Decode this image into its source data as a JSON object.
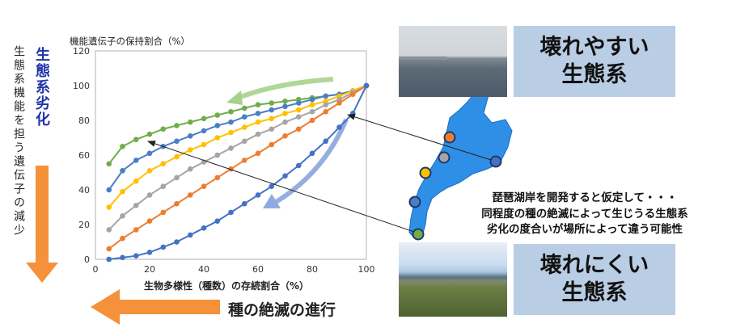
{
  "left_vertical": {
    "function_loss": "生態系機能を担う遺伝子の減少",
    "degradation": "生態系劣化"
  },
  "bottom_arrow_label": "種の絶滅の進行",
  "chart_data": {
    "type": "line",
    "title": "機能遺伝子の保持割合（%）",
    "xlabel": "生物多様性（種数）の存続割合（%）",
    "ylabel": "",
    "xlim": [
      0,
      100
    ],
    "ylim": [
      0,
      120
    ],
    "xticks": [
      "0",
      "20",
      "40",
      "60",
      "80",
      "100"
    ],
    "yticks": [
      "0",
      "20",
      "40",
      "60",
      "80",
      "100",
      "120"
    ],
    "x": [
      5,
      10,
      15,
      20,
      25,
      30,
      35,
      40,
      45,
      50,
      55,
      60,
      65,
      70,
      75,
      80,
      85,
      90,
      95,
      100
    ],
    "series": [
      {
        "color": "#70ad47",
        "values": [
          55,
          65,
          69,
          72,
          75,
          77,
          79,
          81,
          83,
          85,
          87,
          89,
          90,
          91,
          92,
          93,
          94,
          95,
          97,
          100
        ]
      },
      {
        "color": "#4a7ec6",
        "values": [
          40,
          51,
          57,
          61,
          65,
          68,
          71,
          74,
          77,
          79,
          82,
          84,
          86,
          88,
          90,
          92,
          94,
          95,
          97,
          100
        ]
      },
      {
        "color": "#ffc000",
        "values": [
          30,
          39,
          45,
          51,
          55,
          59,
          63,
          66,
          70,
          73,
          76,
          79,
          81,
          84,
          86,
          89,
          91,
          94,
          97,
          100
        ]
      },
      {
        "color": "#a5a5a5",
        "values": [
          17,
          25,
          31,
          37,
          42,
          47,
          52,
          56,
          60,
          64,
          68,
          72,
          75,
          79,
          82,
          85,
          89,
          92,
          96,
          100
        ]
      },
      {
        "color": "#ed7d31",
        "values": [
          6,
          12,
          17,
          22,
          27,
          32,
          37,
          42,
          47,
          52,
          57,
          61,
          66,
          71,
          75,
          80,
          85,
          90,
          95,
          100
        ]
      },
      {
        "color": "#4472c4",
        "values": [
          0,
          1,
          2,
          4,
          7,
          10,
          14,
          18,
          22,
          27,
          32,
          37,
          42,
          48,
          54,
          61,
          68,
          76,
          84,
          100
        ]
      }
    ]
  },
  "labels": {
    "fragile_line1": "壊れやすい",
    "fragile_line2": "生態系",
    "robust_line1": "壊れにくい",
    "robust_line2": "生態系"
  },
  "caption": {
    "line1": "琵琶湖岸を開発すると仮定して・・・",
    "line2": "同程度の種の絶滅によって生じうる生態系",
    "line3": "劣化の度合いが場所によって違う可能性"
  },
  "colors": {
    "lake": "#2f8fe6",
    "label_box": "#b9cde4",
    "orange_arrow": "#f4913a",
    "degradation_text": "#2233aa"
  }
}
